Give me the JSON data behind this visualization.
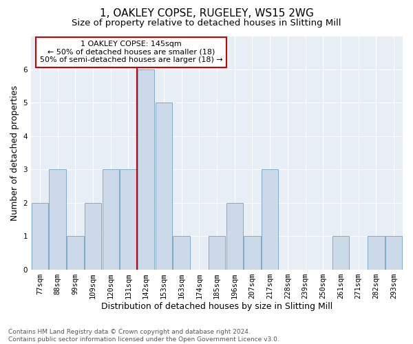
{
  "title": "1, OAKLEY COPSE, RUGELEY, WS15 2WG",
  "subtitle": "Size of property relative to detached houses in Slitting Mill",
  "xlabel": "Distribution of detached houses by size in Slitting Mill",
  "ylabel": "Number of detached properties",
  "categories": [
    "77sqm",
    "88sqm",
    "99sqm",
    "109sqm",
    "120sqm",
    "131sqm",
    "142sqm",
    "153sqm",
    "163sqm",
    "174sqm",
    "185sqm",
    "196sqm",
    "207sqm",
    "217sqm",
    "228sqm",
    "239sqm",
    "250sqm",
    "261sqm",
    "271sqm",
    "282sqm",
    "293sqm"
  ],
  "values": [
    2,
    3,
    1,
    2,
    3,
    3,
    6,
    5,
    1,
    0,
    1,
    2,
    1,
    3,
    0,
    0,
    0,
    1,
    0,
    1,
    1
  ],
  "bar_color": "#ccd9e8",
  "bar_edgecolor": "#7faac8",
  "highlight_index": 6,
  "vline_color": "#cc0000",
  "annotation_text": "1 OAKLEY COPSE: 145sqm\n← 50% of detached houses are smaller (18)\n50% of semi-detached houses are larger (18) →",
  "annotation_box_facecolor": "#ffffff",
  "annotation_box_edgecolor": "#cc0000",
  "ylim": [
    0,
    7
  ],
  "yticks": [
    0,
    1,
    2,
    3,
    4,
    5,
    6,
    7
  ],
  "footnote": "Contains HM Land Registry data © Crown copyright and database right 2024.\nContains public sector information licensed under the Open Government Licence v3.0.",
  "fig_bg_color": "#ffffff",
  "plot_bg_color": "#e8eef5",
  "grid_color": "#ffffff",
  "title_fontsize": 11,
  "subtitle_fontsize": 9.5,
  "ylabel_fontsize": 9,
  "xlabel_fontsize": 9,
  "tick_fontsize": 7.5,
  "footnote_fontsize": 6.5,
  "annotation_fontsize": 8
}
